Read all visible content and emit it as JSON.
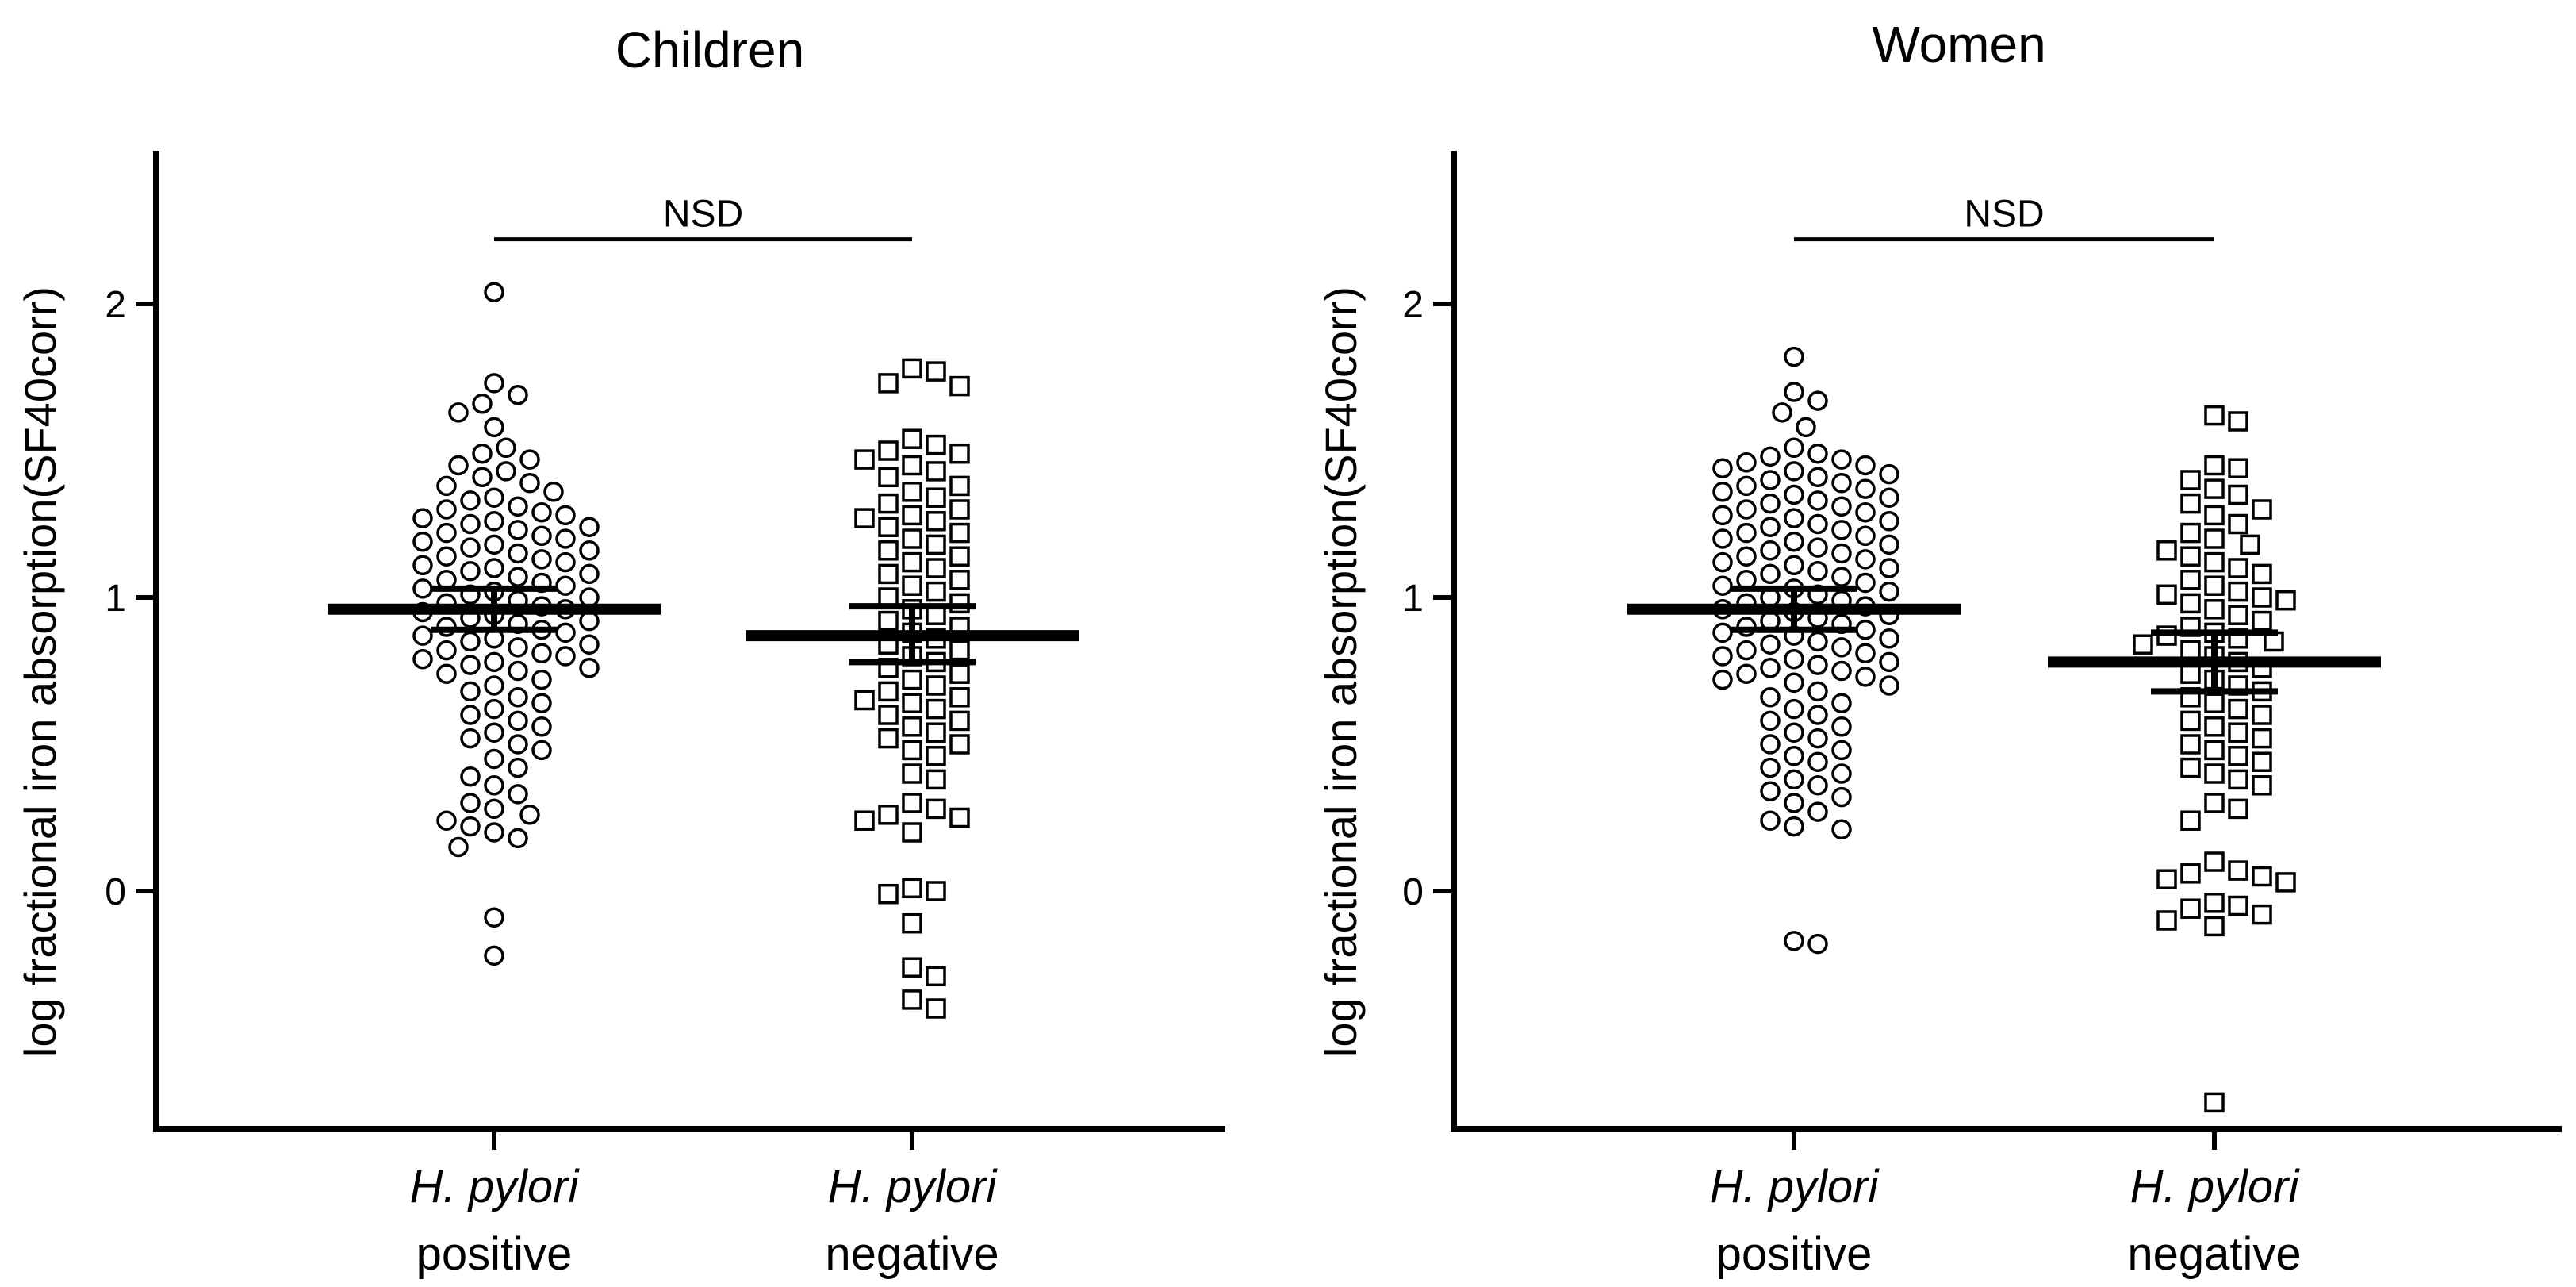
{
  "chart_data": [
    {
      "type": "scatter",
      "title": "Children",
      "ylabel": "log fractional iron absorption(SF40corr)",
      "ylim": [
        -0.8,
        2.5
      ],
      "yticks": [
        0,
        1,
        2
      ],
      "categories": [
        {
          "line1": "H. pylori",
          "line2": "positive"
        },
        {
          "line1": "H. pylori",
          "line2": "negative"
        }
      ],
      "significance": {
        "label": "NSD",
        "y": 2.22
      },
      "series": [
        {
          "marker": "circle",
          "mean": 0.96,
          "error": [
            0.89,
            1.03
          ],
          "values": [
            2.04,
            1.73,
            1.69,
            1.66,
            1.63,
            1.58,
            1.51,
            1.49,
            1.47,
            1.45,
            1.43,
            1.41,
            1.39,
            1.38,
            1.36,
            1.34,
            1.33,
            1.31,
            1.3,
            1.29,
            1.28,
            1.27,
            1.26,
            1.25,
            1.24,
            1.23,
            1.22,
            1.21,
            1.2,
            1.19,
            1.18,
            1.17,
            1.16,
            1.15,
            1.14,
            1.13,
            1.12,
            1.11,
            1.1,
            1.09,
            1.08,
            1.07,
            1.06,
            1.05,
            1.04,
            1.03,
            1.02,
            1.01,
            1.0,
            0.99,
            0.98,
            0.97,
            0.96,
            0.95,
            0.94,
            0.93,
            0.92,
            0.91,
            0.9,
            0.89,
            0.88,
            0.87,
            0.86,
            0.85,
            0.84,
            0.83,
            0.82,
            0.81,
            0.8,
            0.79,
            0.78,
            0.77,
            0.76,
            0.75,
            0.74,
            0.72,
            0.7,
            0.68,
            0.66,
            0.64,
            0.62,
            0.6,
            0.58,
            0.56,
            0.54,
            0.52,
            0.5,
            0.48,
            0.45,
            0.42,
            0.39,
            0.36,
            0.33,
            0.3,
            0.28,
            0.26,
            0.24,
            0.22,
            0.2,
            0.18,
            0.15,
            -0.09,
            -0.22
          ]
        },
        {
          "marker": "square",
          "mean": 0.87,
          "error": [
            0.78,
            0.97
          ],
          "values": [
            1.78,
            1.77,
            1.73,
            1.72,
            1.54,
            1.52,
            1.5,
            1.49,
            1.47,
            1.45,
            1.43,
            1.41,
            1.38,
            1.36,
            1.34,
            1.32,
            1.3,
            1.28,
            1.27,
            1.26,
            1.24,
            1.22,
            1.2,
            1.18,
            1.16,
            1.14,
            1.12,
            1.1,
            1.08,
            1.06,
            1.04,
            1.02,
            1.0,
            0.98,
            0.96,
            0.94,
            0.92,
            0.9,
            0.88,
            0.86,
            0.84,
            0.82,
            0.8,
            0.78,
            0.76,
            0.74,
            0.72,
            0.7,
            0.68,
            0.66,
            0.65,
            0.64,
            0.62,
            0.6,
            0.58,
            0.56,
            0.54,
            0.52,
            0.5,
            0.48,
            0.46,
            0.4,
            0.38,
            0.3,
            0.28,
            0.26,
            0.25,
            0.24,
            0.2,
            0.01,
            0.0,
            -0.01,
            -0.11,
            -0.26,
            -0.29,
            -0.37,
            -0.4
          ]
        }
      ]
    },
    {
      "type": "scatter",
      "title": "Women",
      "ylabel": "log fractional iron absorption(SF40corr)",
      "ylim": [
        -0.8,
        2.5
      ],
      "yticks": [
        0,
        1,
        2
      ],
      "categories": [
        {
          "line1": "H. pylori",
          "line2": "positive"
        },
        {
          "line1": "H. pylori",
          "line2": "negative"
        }
      ],
      "significance": {
        "label": "NSD",
        "y": 2.22
      },
      "series": [
        {
          "marker": "circle",
          "mean": 0.96,
          "error": [
            0.89,
            1.03
          ],
          "values": [
            1.82,
            1.7,
            1.67,
            1.63,
            1.58,
            1.51,
            1.49,
            1.48,
            1.47,
            1.46,
            1.45,
            1.44,
            1.43,
            1.42,
            1.41,
            1.4,
            1.39,
            1.38,
            1.37,
            1.36,
            1.35,
            1.34,
            1.33,
            1.32,
            1.31,
            1.3,
            1.29,
            1.28,
            1.27,
            1.26,
            1.25,
            1.24,
            1.23,
            1.22,
            1.21,
            1.2,
            1.19,
            1.18,
            1.17,
            1.16,
            1.15,
            1.14,
            1.13,
            1.12,
            1.11,
            1.1,
            1.09,
            1.08,
            1.07,
            1.06,
            1.05,
            1.04,
            1.03,
            1.02,
            1.01,
            1.0,
            0.99,
            0.98,
            0.97,
            0.96,
            0.95,
            0.94,
            0.93,
            0.92,
            0.91,
            0.9,
            0.89,
            0.88,
            0.87,
            0.86,
            0.85,
            0.84,
            0.83,
            0.82,
            0.81,
            0.8,
            0.79,
            0.78,
            0.77,
            0.76,
            0.75,
            0.74,
            0.73,
            0.72,
            0.71,
            0.7,
            0.68,
            0.66,
            0.64,
            0.62,
            0.6,
            0.58,
            0.56,
            0.54,
            0.52,
            0.5,
            0.48,
            0.46,
            0.44,
            0.42,
            0.4,
            0.38,
            0.36,
            0.34,
            0.32,
            0.3,
            0.27,
            0.24,
            0.22,
            0.21,
            -0.17,
            -0.18
          ]
        },
        {
          "marker": "square",
          "mean": 0.78,
          "error": [
            0.68,
            0.88
          ],
          "values": [
            1.62,
            1.6,
            1.45,
            1.44,
            1.4,
            1.37,
            1.35,
            1.32,
            1.3,
            1.28,
            1.25,
            1.22,
            1.2,
            1.18,
            1.16,
            1.14,
            1.12,
            1.1,
            1.08,
            1.06,
            1.04,
            1.02,
            1.01,
            1.0,
            0.99,
            0.98,
            0.96,
            0.94,
            0.92,
            0.9,
            0.88,
            0.87,
            0.86,
            0.85,
            0.84,
            0.82,
            0.8,
            0.78,
            0.76,
            0.74,
            0.72,
            0.7,
            0.68,
            0.66,
            0.64,
            0.62,
            0.6,
            0.58,
            0.56,
            0.54,
            0.52,
            0.5,
            0.48,
            0.46,
            0.44,
            0.42,
            0.4,
            0.38,
            0.36,
            0.3,
            0.28,
            0.24,
            0.1,
            0.07,
            0.06,
            0.05,
            0.04,
            0.03,
            -0.04,
            -0.05,
            -0.06,
            -0.08,
            -0.1,
            -0.12,
            -0.72
          ]
        }
      ]
    }
  ]
}
